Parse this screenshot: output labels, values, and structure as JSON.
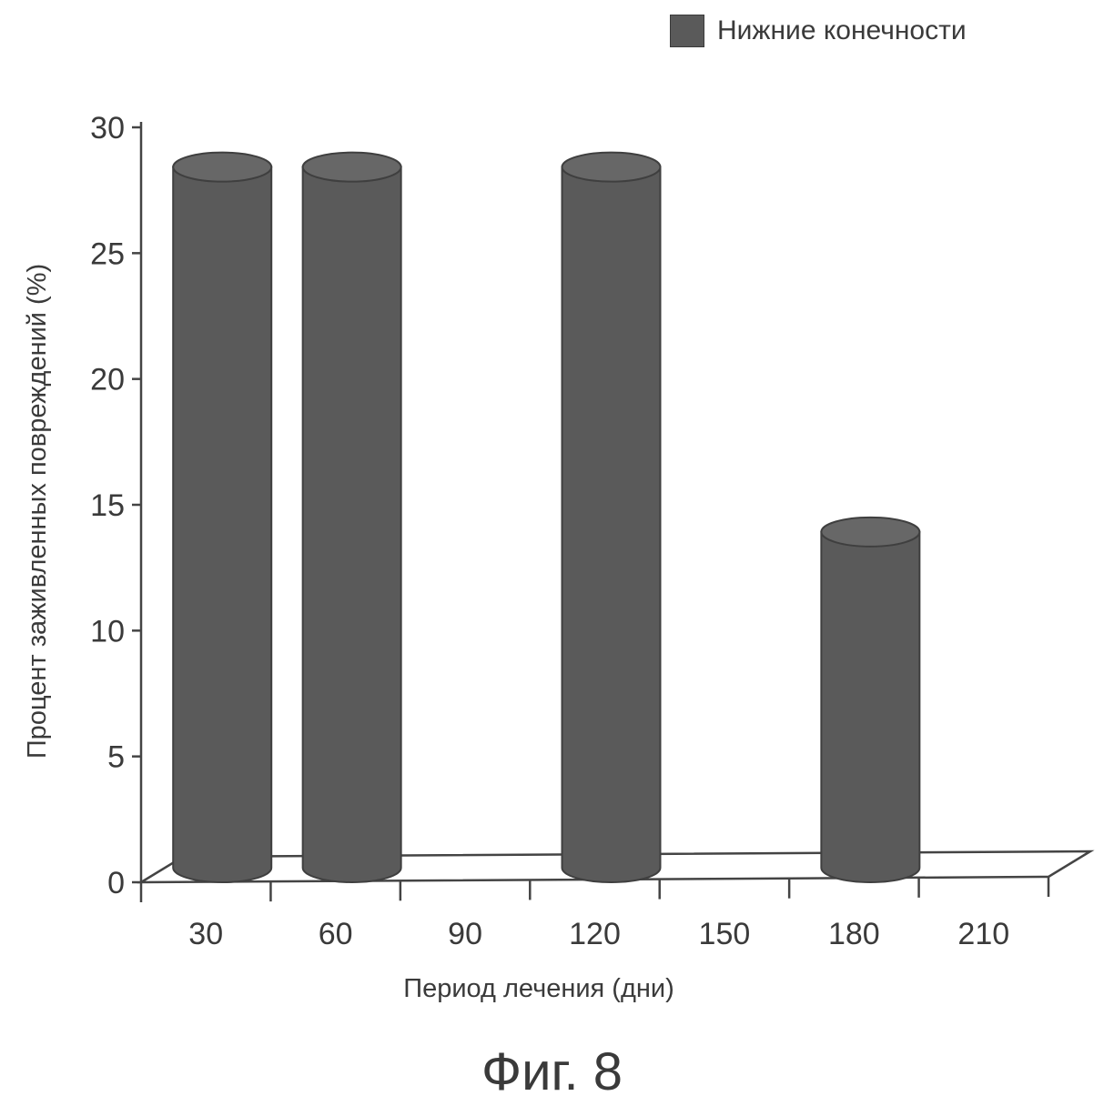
{
  "chart_data": {
    "type": "bar",
    "style": "3d-cylinder",
    "categories": [
      "30",
      "60",
      "90",
      "120",
      "150",
      "180",
      "210"
    ],
    "series": [
      {
        "name": "Нижние конечности",
        "values": [
          29,
          29,
          0,
          29,
          0,
          14.5,
          0
        ],
        "color": "#5a5a5a"
      }
    ],
    "xlabel": "Период лечения (дни)",
    "ylabel": "Процент заживленных повреждений (%)",
    "ylim": [
      0,
      30
    ],
    "yticks": [
      "0",
      "5",
      "10",
      "15",
      "20",
      "25",
      "30"
    ],
    "grid": false,
    "legend_position": "top-right"
  },
  "caption": "Фиг. 8"
}
